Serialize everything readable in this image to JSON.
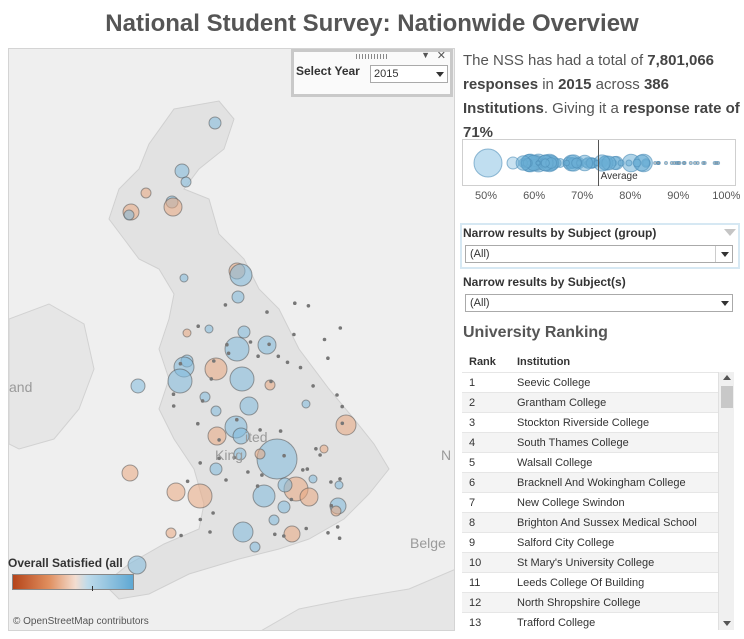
{
  "title": "National Student Survey: Nationwide Overview",
  "year_filter": {
    "label": "Select Year",
    "value": "2015"
  },
  "summary": {
    "t1": "The NSS has had a total of ",
    "responses": "7,801,066",
    "t2": " responses",
    "t3": " in ",
    "year": "2015",
    "t4": " across ",
    "institutions": "386",
    "t5": " Institutions",
    "t6": ". Giving it a ",
    "t7": "response rate of 71%"
  },
  "distribution": {
    "average_label": "Average",
    "average": 73,
    "axis_ticks": [
      "50%",
      "60%",
      "70%",
      "80%",
      "90%",
      "100%"
    ],
    "axis_values": [
      50,
      60,
      70,
      80,
      90,
      100
    ]
  },
  "map": {
    "labels": {
      "left": "and",
      "center1": "ited",
      "center2": "King",
      "right": "N",
      "bottom": "Belge"
    },
    "credit": "© OpenStreetMap contributors",
    "legend_title": "Overall Satisfied (all"
  },
  "filters": {
    "subject_group": {
      "label": "Narrow results by Subject (group)",
      "value": "(All)"
    },
    "subjects": {
      "label": "Narrow results by Subject(s)",
      "value": "(All)"
    }
  },
  "ranking": {
    "title": "University Ranking",
    "columns": [
      "Rank",
      "Institution"
    ],
    "rows": [
      {
        "rank": "1",
        "institution": "Seevic College"
      },
      {
        "rank": "2",
        "institution": "Grantham College"
      },
      {
        "rank": "3",
        "institution": "Stockton Riverside College"
      },
      {
        "rank": "4",
        "institution": "South Thames College"
      },
      {
        "rank": "5",
        "institution": "Walsall College"
      },
      {
        "rank": "6",
        "institution": "Bracknell And Wokingham College"
      },
      {
        "rank": "7",
        "institution": "New College Swindon"
      },
      {
        "rank": "8",
        "institution": "Brighton And Sussex Medical School"
      },
      {
        "rank": "9",
        "institution": "Salford City College"
      },
      {
        "rank": "10",
        "institution": "St Mary's University College"
      },
      {
        "rank": "11",
        "institution": "Leeds College Of Building"
      },
      {
        "rank": "12",
        "institution": "North Shropshire College"
      },
      {
        "rank": "13",
        "institution": "Trafford College"
      }
    ]
  },
  "colors": {
    "blue": "#6baed6",
    "orange": "#e0935f",
    "land": "#e3e3e3",
    "sea": "#f2f2f2"
  }
}
